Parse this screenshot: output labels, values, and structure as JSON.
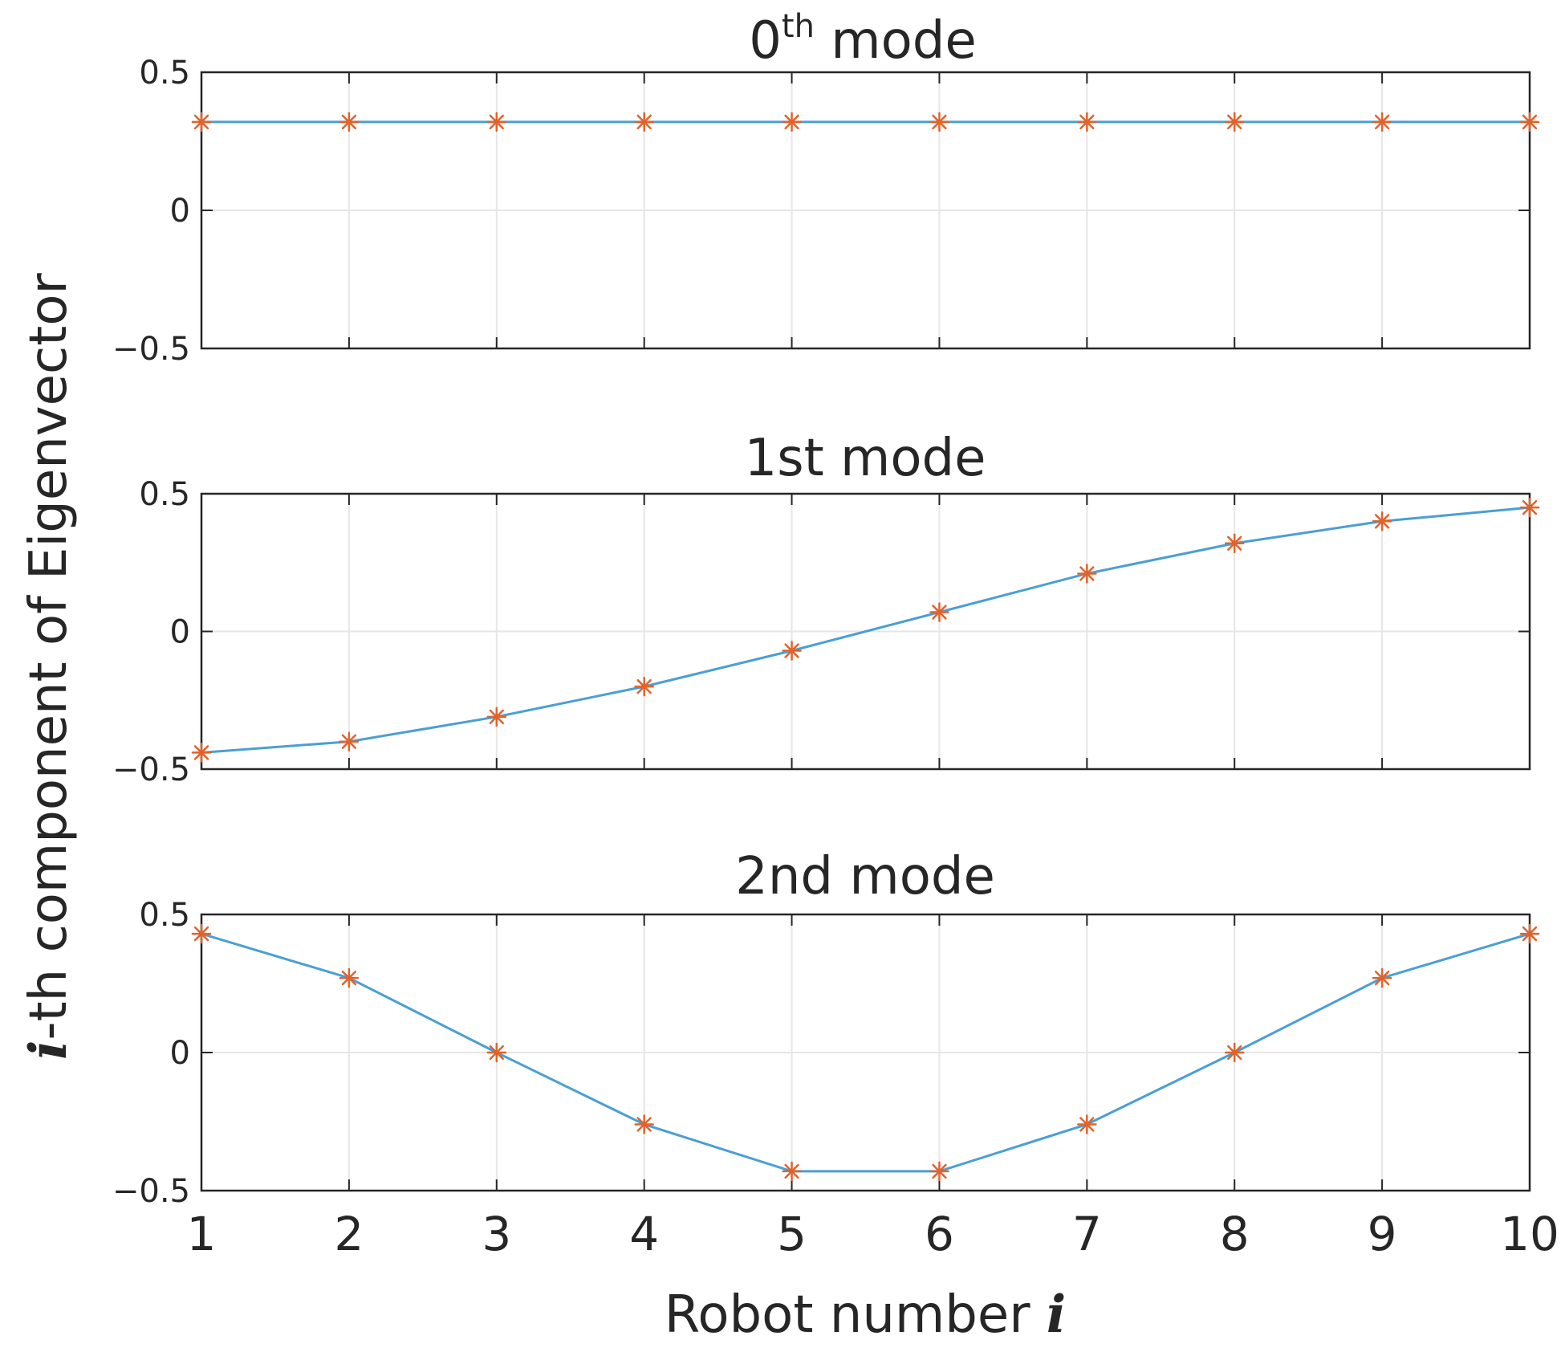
{
  "figure": {
    "xlabel_prefix": "Robot number ",
    "xlabel_italic": "i",
    "ylabel_italic": "i",
    "ylabel_suffix": "-th component of Eigenvector"
  },
  "colors": {
    "line": "#4a9fd4",
    "marker": "#e2622a",
    "grid": "#e6e6e6",
    "axis": "#262626"
  },
  "chart_data": [
    {
      "type": "line",
      "title": "0",
      "title_superscript": "th",
      "title_suffix": " mode",
      "x": [
        1,
        2,
        3,
        4,
        5,
        6,
        7,
        8,
        9,
        10
      ],
      "series": [
        {
          "values": [
            0.32,
            0.32,
            0.32,
            0.32,
            0.32,
            0.32,
            0.32,
            0.32,
            0.32,
            0.32
          ]
        }
      ],
      "xlim": [
        1,
        10
      ],
      "ylim": [
        -0.5,
        0.5
      ],
      "yticks": [
        "0.5",
        "0",
        "−0.5"
      ],
      "xticks": [],
      "grid": true
    },
    {
      "type": "line",
      "title": "1st mode",
      "x": [
        1,
        2,
        3,
        4,
        5,
        6,
        7,
        8,
        9,
        10
      ],
      "series": [
        {
          "values": [
            -0.44,
            -0.4,
            -0.31,
            -0.2,
            -0.07,
            0.07,
            0.21,
            0.32,
            0.4,
            0.45
          ]
        }
      ],
      "xlim": [
        1,
        10
      ],
      "ylim": [
        -0.5,
        0.5
      ],
      "yticks": [
        "0.5",
        "0",
        "−0.5"
      ],
      "xticks": [],
      "grid": true
    },
    {
      "type": "line",
      "title": "2nd mode",
      "x": [
        1,
        2,
        3,
        4,
        5,
        6,
        7,
        8,
        9,
        10
      ],
      "series": [
        {
          "values": [
            0.43,
            0.27,
            0.0,
            -0.26,
            -0.43,
            -0.43,
            -0.26,
            0.0,
            0.27,
            0.43
          ]
        }
      ],
      "xlim": [
        1,
        10
      ],
      "ylim": [
        -0.5,
        0.5
      ],
      "yticks": [
        "0.5",
        "0",
        "−0.5"
      ],
      "xticks": [
        "1",
        "2",
        "3",
        "4",
        "5",
        "6",
        "7",
        "8",
        "9",
        "10"
      ],
      "grid": true
    }
  ]
}
